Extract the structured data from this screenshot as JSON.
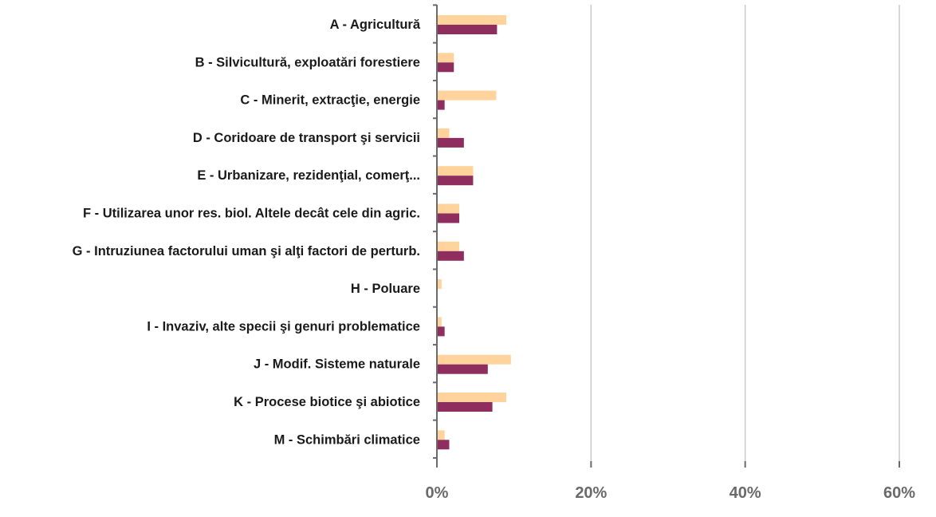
{
  "chart_data": {
    "type": "bar",
    "orientation": "horizontal",
    "categories": [
      "A - Agricultură",
      "B - Silvicultură, exploatări forestiere",
      "C - Minerit, extracţie, energie",
      "D - Coridoare de transport şi servicii",
      "E - Urbanizare, rezidenţial, comerţ...",
      "F - Utilizarea unor res. biol. Altele decât cele din agric.",
      "G - Intruziunea factorului uman şi alţi factori de perturb.",
      "H - Poluare",
      "I - Invaziv, alte specii şi genuri problematice",
      "J - Modif. Sisteme naturale",
      "K - Procese biotice şi abiotice",
      "M - Schimbări climatice"
    ],
    "series": [
      {
        "color": "#FFD39B",
        "values": [
          9.0,
          2.2,
          7.7,
          1.6,
          4.7,
          2.9,
          2.9,
          0.6,
          0.6,
          9.6,
          9.0,
          1.0
        ]
      },
      {
        "color": "#8E2D5E",
        "values": [
          7.8,
          2.2,
          1.0,
          3.5,
          4.7,
          2.9,
          3.5,
          0.0,
          1.0,
          6.6,
          7.2,
          1.6
        ]
      }
    ],
    "xlim": [
      0,
      60
    ],
    "xticks": [
      0,
      20,
      40,
      60
    ],
    "xtick_labels": [
      "0%",
      "20%",
      "40%",
      "60%"
    ],
    "grid": true,
    "xlabel": "",
    "ylabel": "",
    "title": ""
  }
}
